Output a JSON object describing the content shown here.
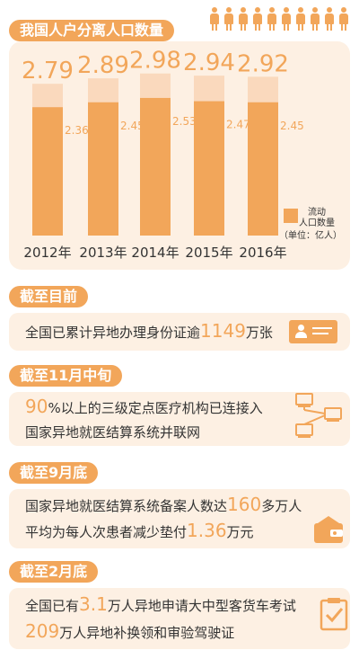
{
  "chart_data": {
    "type": "bar",
    "title": "我国人户分离人口数量",
    "categories": [
      "2012年",
      "2013年",
      "2014年",
      "2015年",
      "2016年"
    ],
    "series": [
      {
        "name": "人户分离人口",
        "values": [
          2.79,
          2.89,
          2.98,
          2.94,
          2.92
        ],
        "color": "#fad9bd"
      },
      {
        "name": "流动人口数量",
        "values": [
          2.36,
          2.45,
          2.53,
          2.47,
          2.45
        ],
        "color": "#f2a65a"
      }
    ],
    "total_labels": [
      "2.79",
      "2.89",
      "2.98",
      "2.94",
      "2.92"
    ],
    "float_labels": [
      "2.36",
      "2.45",
      "2.53",
      "2.47",
      "2.45"
    ],
    "legend": {
      "label_line1": "流动",
      "label_line2": "人口数量",
      "unit": "（单位：亿人）",
      "placement": "bottom-right"
    },
    "ylim": [
      0,
      3
    ]
  },
  "sections": {
    "current": {
      "heading": "截至目前",
      "pre": "全国已累计异地办理身份证逾",
      "num": "1149",
      "post": "万张"
    },
    "nov": {
      "heading": "截至11月中旬",
      "num": "90",
      "line1_post": "%以上的三级定点医疗机构已连接入",
      "line2": "国家异地就医结算系统并联网"
    },
    "sep": {
      "heading": "截至9月底",
      "line1_pre": "国家异地就医结算系统备案人数达",
      "line1_num": "160",
      "line1_post": "多万人",
      "line2_pre": "平均为每人次患者减少垫付",
      "line2_num": "1.36",
      "line2_post": "万元"
    },
    "feb": {
      "heading": "截至2月底",
      "line1_pre": "全国已有",
      "line1_num": "3.1",
      "line1_post": "万人异地申请大中型客货车考试",
      "line2_num": "209",
      "line2_post": "万人异地补换领和审验驾驶证"
    }
  },
  "colors": {
    "accent": "#f2a65a",
    "light": "#fad9bd",
    "panel": "#fdf0e3"
  },
  "icons": [
    "person-icon",
    "id-card-icon",
    "computer-network-icon",
    "wallet-icon",
    "clipboard-check-icon"
  ]
}
